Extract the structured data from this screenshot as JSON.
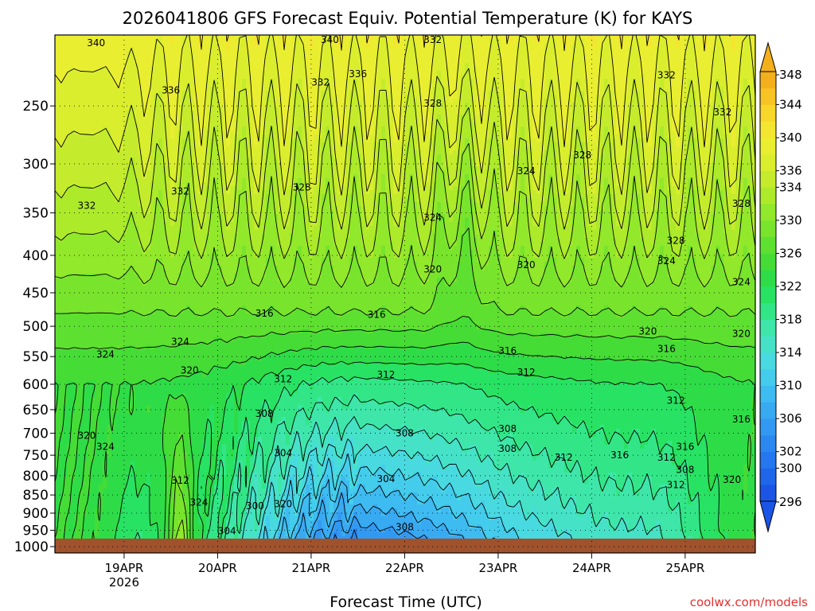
{
  "chart_data": {
    "type": "heatmap",
    "title": "2026041806 GFS Forecast Equiv. Potential Temperature (K) for KAYS",
    "xlabel": "Forecast Time (UTC)",
    "ylabel": "",
    "credit": "coolwx.com/models",
    "x_ticks": [
      "19APR",
      "20APR",
      "21APR",
      "22APR",
      "23APR",
      "24APR",
      "25APR"
    ],
    "x_year": "2026",
    "x_range_days": [
      18.26,
      25.75
    ],
    "y_ticks": [
      250,
      300,
      350,
      400,
      450,
      500,
      550,
      600,
      650,
      700,
      750,
      800,
      850,
      900,
      950,
      1000
    ],
    "y_range_hpa": [
      1020,
      200
    ],
    "y_scale": "log",
    "grid": "dotted",
    "colorbar": {
      "levels": [
        296,
        298,
        300,
        302,
        304,
        306,
        308,
        310,
        312,
        314,
        316,
        318,
        320,
        322,
        324,
        326,
        328,
        330,
        332,
        334,
        336,
        338,
        340,
        342,
        344,
        346,
        348
      ],
      "labels": [
        348,
        344,
        340,
        336,
        334,
        330,
        326,
        322,
        318,
        314,
        310,
        306,
        302,
        300,
        296
      ],
      "colors": [
        "#1a55e6",
        "#1f66eb",
        "#2477ee",
        "#2b88f0",
        "#3299f2",
        "#38aaf2",
        "#3ebbf0",
        "#44ccec",
        "#48dae0",
        "#46e2c8",
        "#3ee6aa",
        "#32e688",
        "#28e264",
        "#2edc48",
        "#46dc36",
        "#5ee030",
        "#78e42c",
        "#92e82a",
        "#acea2a",
        "#c4ec2c",
        "#daee2e",
        "#eaee30",
        "#f4e630",
        "#f8d62a",
        "#f8c424",
        "#f4b01c"
      ]
    },
    "contour_labels": [
      {
        "v": "340",
        "t": 18.7,
        "p": 205
      },
      {
        "v": "340",
        "t": 21.2,
        "p": 203
      },
      {
        "v": "336",
        "t": 19.5,
        "p": 238
      },
      {
        "v": "336",
        "t": 21.5,
        "p": 226
      },
      {
        "v": "332",
        "t": 19.6,
        "p": 327
      },
      {
        "v": "332",
        "t": 18.6,
        "p": 342
      },
      {
        "v": "332",
        "t": 21.1,
        "p": 232
      },
      {
        "v": "332",
        "t": 22.3,
        "p": 203
      },
      {
        "v": "332",
        "t": 24.8,
        "p": 227
      },
      {
        "v": "332",
        "t": 25.4,
        "p": 255
      },
      {
        "v": "328",
        "t": 20.9,
        "p": 323
      },
      {
        "v": "328",
        "t": 22.3,
        "p": 248
      },
      {
        "v": "328",
        "t": 23.9,
        "p": 292
      },
      {
        "v": "328",
        "t": 25.6,
        "p": 340
      },
      {
        "v": "328",
        "t": 24.9,
        "p": 382
      },
      {
        "v": "324",
        "t": 22.3,
        "p": 355
      },
      {
        "v": "324",
        "t": 23.3,
        "p": 307
      },
      {
        "v": "324",
        "t": 24.8,
        "p": 407
      },
      {
        "v": "324",
        "t": 25.6,
        "p": 435
      },
      {
        "v": "324",
        "t": 19.6,
        "p": 525
      },
      {
        "v": "324",
        "t": 18.8,
        "p": 546
      },
      {
        "v": "324",
        "t": 18.8,
        "p": 730
      },
      {
        "v": "324",
        "t": 19.8,
        "p": 870
      },
      {
        "v": "320",
        "t": 22.3,
        "p": 418
      },
      {
        "v": "320",
        "t": 23.3,
        "p": 412
      },
      {
        "v": "320",
        "t": 24.6,
        "p": 508
      },
      {
        "v": "320",
        "t": 25.6,
        "p": 512
      },
      {
        "v": "320",
        "t": 18.6,
        "p": 705
      },
      {
        "v": "320",
        "t": 19.7,
        "p": 574
      },
      {
        "v": "320",
        "t": 20.7,
        "p": 875
      },
      {
        "v": "320",
        "t": 25.5,
        "p": 810
      },
      {
        "v": "316",
        "t": 20.5,
        "p": 480
      },
      {
        "v": "316",
        "t": 21.7,
        "p": 482
      },
      {
        "v": "316",
        "t": 23.1,
        "p": 540
      },
      {
        "v": "316",
        "t": 24.8,
        "p": 537
      },
      {
        "v": "316",
        "t": 25.6,
        "p": 670
      },
      {
        "v": "316",
        "t": 24.3,
        "p": 750
      },
      {
        "v": "316",
        "t": 25.0,
        "p": 730
      },
      {
        "v": "312",
        "t": 20.7,
        "p": 590
      },
      {
        "v": "312",
        "t": 21.8,
        "p": 582
      },
      {
        "v": "312",
        "t": 23.3,
        "p": 578
      },
      {
        "v": "312",
        "t": 24.9,
        "p": 632
      },
      {
        "v": "312",
        "t": 23.7,
        "p": 755
      },
      {
        "v": "312",
        "t": 24.8,
        "p": 755
      },
      {
        "v": "312",
        "t": 24.9,
        "p": 823
      },
      {
        "v": "312",
        "t": 19.6,
        "p": 812
      },
      {
        "v": "308",
        "t": 20.5,
        "p": 658
      },
      {
        "v": "308",
        "t": 22.0,
        "p": 700
      },
      {
        "v": "308",
        "t": 23.1,
        "p": 690
      },
      {
        "v": "308",
        "t": 23.1,
        "p": 735
      },
      {
        "v": "308",
        "t": 25.0,
        "p": 785
      },
      {
        "v": "308",
        "t": 22.0,
        "p": 940
      },
      {
        "v": "304",
        "t": 20.7,
        "p": 745
      },
      {
        "v": "304",
        "t": 21.8,
        "p": 808
      },
      {
        "v": "304",
        "t": 20.1,
        "p": 952
      },
      {
        "v": "300",
        "t": 20.4,
        "p": 880
      }
    ]
  }
}
